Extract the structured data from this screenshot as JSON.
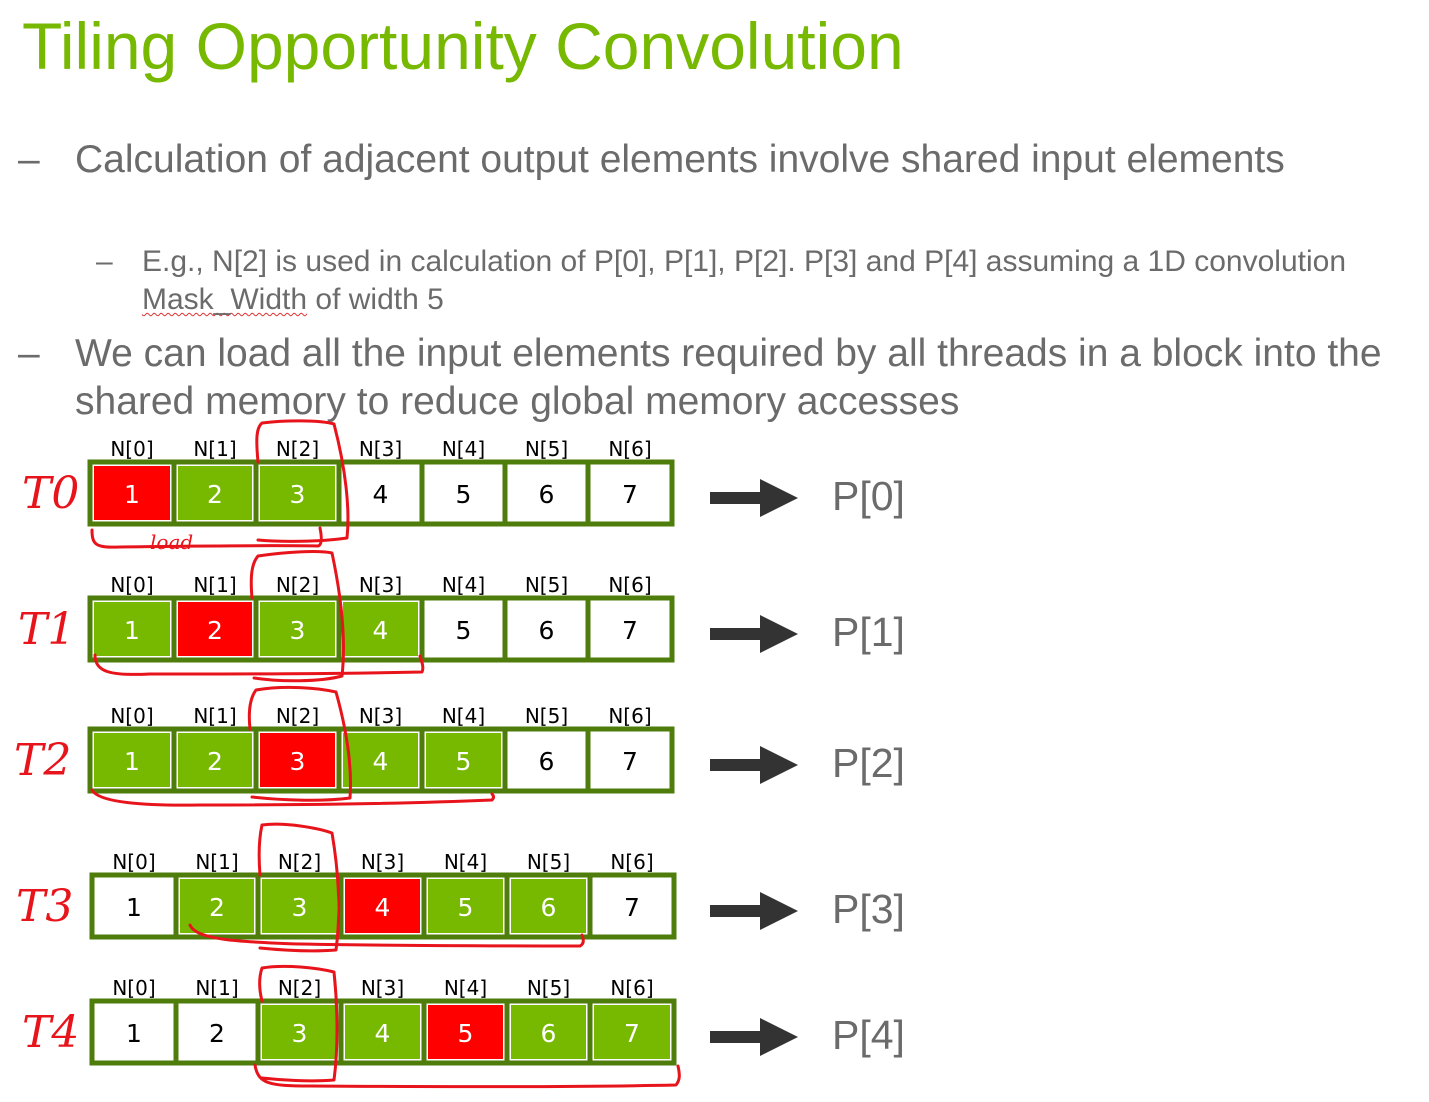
{
  "slide": {
    "title": "Tiling Opportunity Convolution",
    "bullets": [
      {
        "dash": "–",
        "text": "Calculation of adjacent output elements involve shared input elements"
      },
      {
        "dash": "–",
        "text": "We can load all the input elements required by all threads in a block into the shared memory to reduce global memory accesses"
      }
    ],
    "sub_bullet": {
      "dash": "–",
      "text_before": "E.g., N[2] is used in calculation of P[0], P[1], P[2]. P[3] and P[4] assuming a 1D convolution ",
      "underlined": "Mask_Width",
      "text_after": " of width 5"
    }
  },
  "diagram": {
    "column_headers": [
      "N[0]",
      "N[1]",
      "N[2]",
      "N[3]",
      "N[4]",
      "N[5]",
      "N[6]"
    ],
    "annotation": "load",
    "colors": {
      "green": "#76b900",
      "red": "#ff0000",
      "white": "#ffffff",
      "border": "#4e7d0c",
      "arrow": "#333333",
      "ink": "#e8141b"
    },
    "rows": [
      {
        "thread": "T0",
        "output": "P[0]",
        "values": [
          "1",
          "2",
          "3",
          "4",
          "5",
          "6",
          "7"
        ],
        "states": [
          "red",
          "green",
          "green",
          "white",
          "white",
          "white",
          "white"
        ]
      },
      {
        "thread": "T1",
        "output": "P[1]",
        "values": [
          "1",
          "2",
          "3",
          "4",
          "5",
          "6",
          "7"
        ],
        "states": [
          "green",
          "red",
          "green",
          "green",
          "white",
          "white",
          "white"
        ]
      },
      {
        "thread": "T2",
        "output": "P[2]",
        "values": [
          "1",
          "2",
          "3",
          "4",
          "5",
          "6",
          "7"
        ],
        "states": [
          "green",
          "green",
          "red",
          "green",
          "green",
          "white",
          "white"
        ]
      },
      {
        "thread": "T3",
        "output": "P[3]",
        "values": [
          "1",
          "2",
          "3",
          "4",
          "5",
          "6",
          "7"
        ],
        "states": [
          "white",
          "green",
          "green",
          "red",
          "green",
          "green",
          "white"
        ]
      },
      {
        "thread": "T4",
        "output": "P[4]",
        "values": [
          "1",
          "2",
          "3",
          "4",
          "5",
          "6",
          "7"
        ],
        "states": [
          "white",
          "white",
          "green",
          "green",
          "red",
          "green",
          "green"
        ]
      }
    ]
  }
}
